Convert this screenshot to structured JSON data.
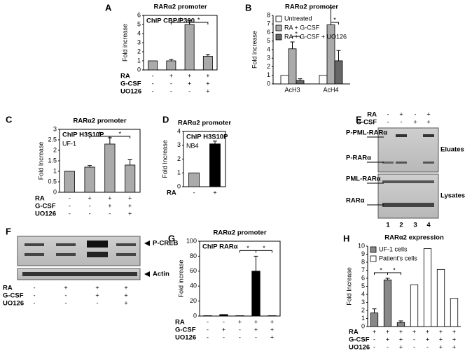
{
  "panels": [
    "A",
    "B",
    "C",
    "D",
    "E",
    "F",
    "G",
    "H"
  ],
  "chart_data": [
    {
      "type": "bar",
      "title": "RARα2 promoter",
      "box_label": "ChIP CBP/P300",
      "y_label": "Fold increase",
      "ylim": [
        0,
        6
      ],
      "yticks": [
        0,
        1,
        2,
        3,
        4,
        5,
        6
      ],
      "values": [
        1,
        1,
        5,
        1.5
      ],
      "errors": [
        0,
        0.15,
        0.45,
        0.2
      ],
      "colors": [
        "#aaaaaa",
        "#aaaaaa",
        "#aaaaaa",
        "#aaaaaa"
      ],
      "significance": [
        "*",
        "*"
      ],
      "treatments": [
        {
          "label": "RA",
          "signs": [
            "-",
            "+",
            "+",
            "+"
          ]
        },
        {
          "label": "G-CSF",
          "signs": [
            "-",
            "-",
            "+",
            "+"
          ]
        },
        {
          "label": "UO126",
          "signs": [
            "-",
            "-",
            "-",
            "+"
          ]
        }
      ]
    },
    {
      "type": "grouped-bar",
      "title": "RARα2 promoter",
      "y_label": "Fold increase",
      "ylim": [
        0,
        8
      ],
      "yticks": [
        0,
        1,
        2,
        3,
        4,
        5,
        6,
        7,
        8
      ],
      "categories": [
        "AcH3",
        "AcH4"
      ],
      "series": [
        {
          "name": "Untreated",
          "color": "#ffffff",
          "values": [
            1,
            1
          ],
          "errors": [
            0,
            0
          ]
        },
        {
          "name": "RA + G-CSF",
          "color": "#aaaaaa",
          "values": [
            4.1,
            6.9
          ],
          "errors": [
            0.8,
            2.0
          ]
        },
        {
          "name": "RA + G-CSF + UO126",
          "color": "#666666",
          "values": [
            0.4,
            2.7
          ],
          "errors": [
            0.2,
            1.2
          ]
        }
      ],
      "significance": [
        "*",
        "*"
      ]
    },
    {
      "type": "bar",
      "title": "RARα2 promoter",
      "box_label": "ChIP H3S10P",
      "box_sublabel": "UF-1",
      "y_label": "Fold Increase",
      "ylim": [
        0,
        3
      ],
      "yticks": [
        0,
        0.5,
        1,
        1.5,
        2,
        2.5,
        3
      ],
      "values": [
        1,
        1.2,
        2.3,
        1.3
      ],
      "errors": [
        0,
        0.08,
        0.3,
        0.25
      ],
      "colors": [
        "#aaaaaa",
        "#aaaaaa",
        "#aaaaaa",
        "#aaaaaa"
      ],
      "significance": [
        "*",
        "*"
      ],
      "treatments": [
        {
          "label": "RA",
          "signs": [
            "-",
            "+",
            "+",
            "+"
          ]
        },
        {
          "label": "G-CSF",
          "signs": [
            "-",
            "-",
            "+",
            "+"
          ]
        },
        {
          "label": "UO126",
          "signs": [
            "-",
            "-",
            "-",
            "+"
          ]
        }
      ]
    },
    {
      "type": "bar",
      "title": "RARα2 promoter",
      "box_label": "ChIP H3S10P",
      "box_sublabel": "NB4",
      "y_label": "Fold Increase",
      "ylim": [
        0,
        4
      ],
      "yticks": [
        0,
        1,
        2,
        3,
        4
      ],
      "values": [
        1,
        3.1
      ],
      "errors": [
        0,
        0.2
      ],
      "colors": [
        "#aaaaaa",
        "#000000"
      ],
      "significance": [],
      "treatments": [
        {
          "label": "RA",
          "signs": [
            "-",
            "+"
          ]
        }
      ]
    },
    {
      "type": "bar",
      "title": "RARα2 promoter",
      "box_label": "ChIP RARα",
      "y_label": "Fold increase",
      "ylim": [
        0,
        100
      ],
      "yticks": [
        0,
        20,
        40,
        60,
        80,
        100
      ],
      "values": [
        0.5,
        2,
        0.5,
        60,
        0.5
      ],
      "errors": [
        0,
        0,
        0,
        20,
        0
      ],
      "colors": [
        "#aaaaaa",
        "#000000",
        "#aaaaaa",
        "#000000",
        "#aaaaaa"
      ],
      "significance": [
        "*",
        "*"
      ],
      "treatments": [
        {
          "label": "RA",
          "signs": [
            "-",
            "-",
            "+",
            "+",
            "+"
          ]
        },
        {
          "label": "G-CSF",
          "signs": [
            "-",
            "+",
            "-",
            "+",
            "+"
          ]
        },
        {
          "label": "UO126",
          "signs": [
            "-",
            "-",
            "-",
            "-",
            "+"
          ]
        }
      ]
    },
    {
      "type": "column-bar",
      "title": "RARα2 expression",
      "y_label": "Fold Increase",
      "ylim": [
        0,
        10
      ],
      "yticks": [
        0,
        1,
        2,
        3,
        4,
        5,
        6,
        7,
        8,
        9,
        10
      ],
      "series": [
        {
          "name": "UF-1 cells",
          "color": "#888888",
          "values": [
            1.7,
            5.8,
            0.5,
            null,
            null,
            null,
            null
          ],
          "errors": [
            0.5,
            0.2,
            0.2,
            null,
            null,
            null,
            null
          ]
        },
        {
          "name": "Patient's cells",
          "color": "#ffffff",
          "values": [
            null,
            null,
            null,
            5.2,
            9.7,
            7.1,
            3.5
          ]
        }
      ],
      "significance": [
        "*",
        "*"
      ],
      "treatments": [
        {
          "label": "RA",
          "signs": [
            "+",
            "+",
            "+",
            "+",
            "+",
            "+",
            "+"
          ]
        },
        {
          "label": "G-CSF",
          "signs": [
            "-",
            "+",
            "+",
            "-",
            "+",
            "+",
            "+"
          ]
        },
        {
          "label": "UO126",
          "signs": [
            "-",
            "-",
            "+",
            "-",
            "-",
            "+",
            "+"
          ]
        }
      ]
    }
  ],
  "blot_e": {
    "treatments": [
      {
        "label": "RA",
        "signs": [
          "-",
          "+",
          "-",
          "+"
        ]
      },
      {
        "label": "G-CSF",
        "signs": [
          "-",
          "-",
          "+",
          "+"
        ]
      }
    ],
    "band_labels": [
      "P-PML-RARα",
      "P-RARα",
      "PML-RARα",
      "RARα"
    ],
    "section_labels": [
      "Eluates",
      "Lysates"
    ],
    "lanes": [
      "1",
      "2",
      "3",
      "4"
    ]
  },
  "blot_f": {
    "band_labels": [
      "P-CREB",
      "Actin"
    ],
    "treatments": [
      {
        "label": "RA",
        "signs": [
          "-",
          "+",
          "+",
          "+"
        ]
      },
      {
        "label": "G-CSF",
        "signs": [
          "-",
          "-",
          "+",
          "+"
        ]
      },
      {
        "label": "UO126",
        "signs": [
          "-",
          "-",
          "-",
          "+"
        ]
      }
    ]
  }
}
